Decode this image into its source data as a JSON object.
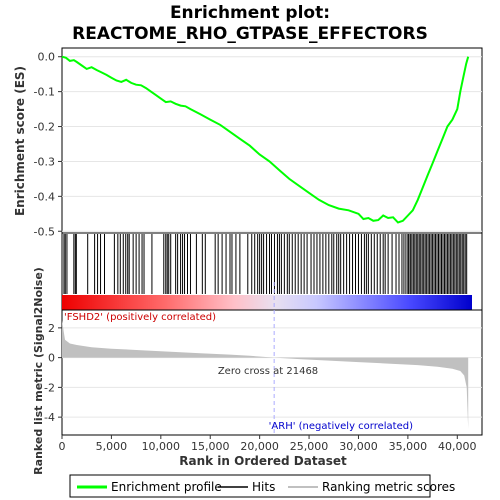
{
  "chart_data": {
    "type": "line",
    "title_line1": "Enrichment plot:",
    "title_line2": "REACTOME_RHO_GTPASE_EFFECTORS",
    "xlabel": "Rank in Ordered Dataset",
    "ylabel_top": "Enrichment score (ES)",
    "ylabel_bottom": "Ranked list metric (Signal2Noise)",
    "xlim": [
      0,
      42500
    ],
    "es_ylim": [
      -0.505,
      0.025
    ],
    "metric_ylim": [
      -5.2,
      3.2
    ],
    "x_ticks": [
      0,
      5000,
      10000,
      15000,
      20000,
      25000,
      30000,
      35000,
      40000
    ],
    "x_tick_labels": [
      "0",
      "5,000",
      "10,000",
      "15,000",
      "20,000",
      "25,000",
      "30,000",
      "35,000",
      "40,000"
    ],
    "es_ticks": [
      0.0,
      -0.1,
      -0.2,
      -0.3,
      -0.4,
      -0.5
    ],
    "es_tick_labels": [
      "0.0",
      "-0.1",
      "-0.2",
      "-0.3",
      "-0.4",
      "-0.5"
    ],
    "metric_ticks": [
      2,
      0,
      -2,
      -4
    ],
    "metric_tick_labels": [
      "2",
      "0",
      "-2",
      "-4"
    ],
    "enrichment_profile": {
      "x": [
        0,
        400,
        800,
        1200,
        1500,
        2000,
        2500,
        3000,
        3500,
        4000,
        4500,
        5000,
        5500,
        6000,
        6500,
        7000,
        7500,
        8000,
        8500,
        9000,
        9500,
        10000,
        10500,
        11000,
        11500,
        12000,
        12500,
        13000,
        14000,
        15000,
        16000,
        17000,
        18000,
        19000,
        20000,
        21000,
        22000,
        23000,
        24000,
        25000,
        26000,
        27000,
        28000,
        29000,
        30000,
        30500,
        31000,
        31500,
        32000,
        32500,
        33000,
        33500,
        34000,
        34500,
        35000,
        35500,
        36000,
        36500,
        37000,
        37500,
        38000,
        38500,
        39000,
        39500,
        40000,
        40300,
        40600,
        40900,
        41100
      ],
      "y": [
        0.0,
        -0.003,
        -0.012,
        -0.01,
        -0.015,
        -0.025,
        -0.035,
        -0.03,
        -0.038,
        -0.045,
        -0.052,
        -0.06,
        -0.068,
        -0.072,
        -0.066,
        -0.075,
        -0.08,
        -0.082,
        -0.09,
        -0.1,
        -0.11,
        -0.12,
        -0.13,
        -0.128,
        -0.135,
        -0.14,
        -0.142,
        -0.15,
        -0.165,
        -0.18,
        -0.195,
        -0.215,
        -0.235,
        -0.255,
        -0.28,
        -0.3,
        -0.325,
        -0.35,
        -0.37,
        -0.39,
        -0.41,
        -0.425,
        -0.435,
        -0.44,
        -0.45,
        -0.465,
        -0.462,
        -0.47,
        -0.468,
        -0.455,
        -0.462,
        -0.46,
        -0.475,
        -0.47,
        -0.455,
        -0.44,
        -0.41,
        -0.375,
        -0.34,
        -0.305,
        -0.27,
        -0.235,
        -0.2,
        -0.18,
        -0.15,
        -0.1,
        -0.06,
        -0.02,
        0.0
      ]
    },
    "metric": {
      "x": [
        0,
        300,
        800,
        1500,
        3000,
        5000,
        8000,
        11000,
        14000,
        17000,
        19000,
        21468,
        24000,
        27000,
        30000,
        33000,
        36000,
        38000,
        39500,
        40300,
        40700,
        40950,
        41100
      ],
      "y": [
        2.5,
        1.2,
        0.95,
        0.85,
        0.7,
        0.6,
        0.5,
        0.4,
        0.3,
        0.2,
        0.12,
        0.0,
        -0.1,
        -0.2,
        -0.3,
        -0.4,
        -0.5,
        -0.62,
        -0.75,
        -0.9,
        -1.2,
        -2.0,
        -4.8
      ]
    },
    "hits_description": "vertical hit lines",
    "hit_positions": [
      200,
      330,
      500,
      1200,
      1350,
      1450,
      2600,
      3300,
      3600,
      3900,
      4300,
      5300,
      5650,
      5900,
      6200,
      6450,
      6650,
      6800,
      7200,
      7500,
      7800,
      8100,
      8300,
      9100,
      10300,
      10500,
      10650,
      10800,
      11000,
      11500,
      11700,
      12000,
      12200,
      12400,
      12700,
      13000,
      13600,
      14200,
      14500,
      15500,
      15800,
      16200,
      16600,
      17000,
      17200,
      17600,
      18000,
      18800,
      19200,
      19500,
      19800,
      20000,
      20200,
      20400,
      20700,
      21000,
      21200,
      21500,
      21800,
      22000,
      22200,
      22500,
      22800,
      23000,
      23300,
      23600,
      23900,
      24200,
      24500,
      24800,
      25200,
      25500,
      25800,
      26100,
      26400,
      26700,
      27000,
      27300,
      27500,
      27800,
      28000,
      28200,
      28500,
      28800,
      29100,
      29400,
      29700,
      30000,
      30300,
      30600,
      30800,
      31000,
      31300,
      31600,
      31900,
      32200,
      32500,
      32700,
      33000,
      33400,
      33800,
      34100,
      34400,
      34600,
      34800,
      35000,
      35100,
      35250,
      35400,
      35550,
      35700,
      35850,
      36000,
      36150,
      36300,
      36450,
      36600,
      36750,
      36900,
      37050,
      37200,
      37350,
      37500,
      37650,
      37800,
      37950,
      38100,
      38250,
      38400,
      38550,
      38700,
      38850,
      39000,
      39150,
      39300,
      39450,
      39600,
      39750,
      39900,
      40050,
      40200,
      40350,
      40500,
      40650,
      40800,
      40950
    ],
    "zero_cross": 21468,
    "zero_cross_label": "Zero cross at 21468",
    "pos_label": "'FSHD2' (positively correlated)",
    "neg_label": "'ARH' (negatively correlated)",
    "legend": {
      "enrichment": "Enrichment profile",
      "hits": "Hits",
      "metric": "Ranking metric scores"
    },
    "colors": {
      "es_line": "#00ff00",
      "hits": "#000000",
      "metric_fill": "#c0c0c0",
      "pos_text": "#cc0000",
      "neg_text": "#0000cc",
      "zero_line": "#aaaaff"
    }
  }
}
